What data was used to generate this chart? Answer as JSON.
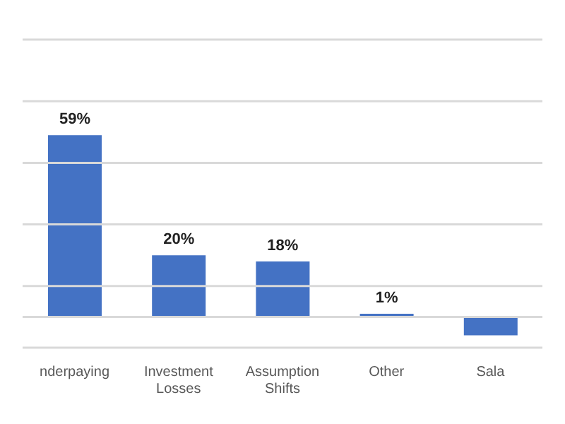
{
  "chart_data": {
    "type": "bar",
    "categories": [
      "nderpaying",
      "Investment Losses",
      "Assumption Shifts",
      "Other",
      "Sala"
    ],
    "values": [
      59,
      20,
      18,
      1,
      -6
    ],
    "value_labels": [
      "59%",
      "20%",
      "18%",
      "1%",
      null
    ],
    "color": "#4472c4",
    "ylim": [
      -10,
      90
    ],
    "yticks": [
      {
        "value": -10,
        "label": null
      },
      {
        "value": 10,
        "label": null
      },
      {
        "value": 30,
        "label": null
      },
      {
        "value": 50,
        "label": null
      },
      {
        "value": 70,
        "label": null
      },
      {
        "value": 90,
        "label": null
      }
    ],
    "tick_labels": "x",
    "grid": "y"
  }
}
